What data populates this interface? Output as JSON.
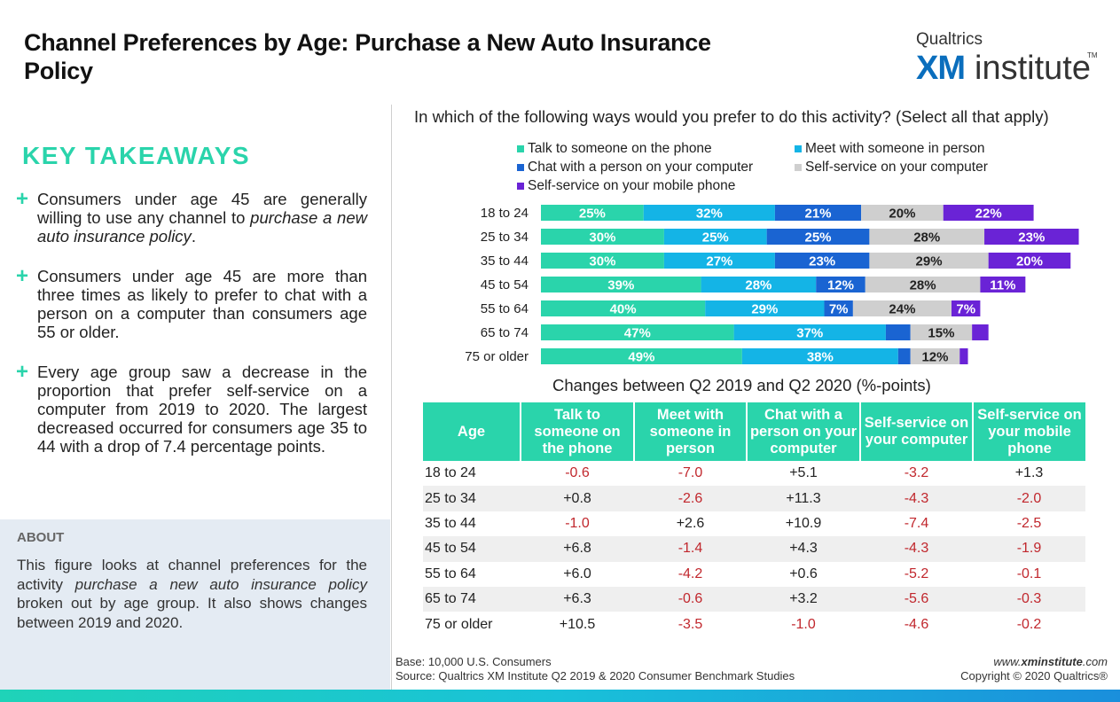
{
  "title": "Channel Preferences by Age: Purchase a New Auto Insurance Policy",
  "logo": {
    "brand": "Qualtrics",
    "xm": "XM",
    "institute": "institute",
    "tm": "TM"
  },
  "key_takeaways": {
    "heading": "KEY TAKEAWAYS",
    "items": [
      {
        "before": "Consumers under age 45 are generally willing to use any channel to ",
        "em": "purchase a new auto insurance policy",
        "after": "."
      },
      {
        "before": "Consumers under age 45 are more than three times as likely to prefer to chat with a person on a computer than consumers age 55 or older.",
        "em": "",
        "after": ""
      },
      {
        "before": "Every age group saw a decrease in the proportion that prefer self-service on a computer from 2019 to 2020. The largest decreased occurred for consumers age 35 to 44 with a drop of 7.4 percentage points.",
        "em": "",
        "after": ""
      }
    ]
  },
  "about": {
    "heading": "ABOUT",
    "before": "This figure looks at channel preferences for the activity ",
    "em": "purchase a new auto insurance policy",
    "after": " broken out by age group. It also shows changes between 2019 and 2020."
  },
  "chart_question": "In which of the following ways would you prefer to do this activity? (Select all that apply)",
  "chart_data": {
    "type": "bar",
    "orientation": "horizontal",
    "stacked": true,
    "categories": [
      "18 to 24",
      "25 to 34",
      "35 to 44",
      "45 to 54",
      "55 to 64",
      "65 to 74",
      "75 or older"
    ],
    "series": [
      {
        "name": "Talk to someone on the phone",
        "color": "#2ad4ab",
        "label_color": "#ffffff",
        "values": [
          25,
          30,
          30,
          39,
          40,
          47,
          49
        ]
      },
      {
        "name": "Meet with someone in person",
        "color": "#14b4e6",
        "label_color": "#ffffff",
        "values": [
          32,
          25,
          27,
          28,
          29,
          37,
          38
        ]
      },
      {
        "name": "Chat with a person on your computer",
        "color": "#1a64d2",
        "label_color": "#ffffff",
        "values": [
          21,
          25,
          23,
          12,
          7,
          6,
          3
        ]
      },
      {
        "name": "Self-service on your computer",
        "color": "#cfcfcf",
        "label_color": "#222222",
        "values": [
          20,
          28,
          29,
          28,
          24,
          15,
          12
        ]
      },
      {
        "name": "Self-service on your mobile phone",
        "color": "#6a23d6",
        "label_color": "#ffffff",
        "values": [
          22,
          23,
          20,
          11,
          7,
          4,
          2
        ]
      }
    ],
    "labels": [
      [
        "25%",
        "32%",
        "21%",
        "20%",
        "22%"
      ],
      [
        "30%",
        "25%",
        "25%",
        "28%",
        "23%"
      ],
      [
        "30%",
        "27%",
        "23%",
        "29%",
        "20%"
      ],
      [
        "39%",
        "28%",
        "12%",
        "28%",
        "11%"
      ],
      [
        "40%",
        "29%",
        "7%",
        "24%",
        "7%"
      ],
      [
        "47%",
        "37%",
        "",
        "15%",
        ""
      ],
      [
        "49%",
        "38%",
        "",
        "12%",
        ""
      ]
    ],
    "legend_position": "top",
    "grid": false
  },
  "changes": {
    "title": "Changes between Q2 2019 and Q2 2020 (%-points)",
    "headers": [
      "Age",
      "Talk to someone on the phone",
      "Meet with someone in person",
      "Chat with a person on your computer",
      "Self-service on your computer",
      "Self-service on your mobile phone"
    ],
    "rows": [
      [
        "18 to 24",
        "-0.6",
        "-7.0",
        "+5.1",
        "-3.2",
        "+1.3"
      ],
      [
        "25 to 34",
        "+0.8",
        "-2.6",
        "+11.3",
        "-4.3",
        "-2.0"
      ],
      [
        "35 to 44",
        "-1.0",
        "+2.6",
        "+10.9",
        "-7.4",
        "-2.5"
      ],
      [
        "45 to 54",
        "+6.8",
        "-1.4",
        "+4.3",
        "-4.3",
        "-1.9"
      ],
      [
        "55 to 64",
        "+6.0",
        "-4.2",
        "+0.6",
        "-5.2",
        "-0.1"
      ],
      [
        "65 to 74",
        "+6.3",
        "-0.6",
        "+3.2",
        "-5.6",
        "-0.3"
      ],
      [
        "75 or older",
        "+10.5",
        "-3.5",
        "-1.0",
        "-4.6",
        "-0.2"
      ]
    ],
    "negative_color": "#c1272d"
  },
  "footer": {
    "base": "Base: 10,000 U.S. Consumers",
    "source": "Source: Qualtrics XM Institute Q2 2019 & 2020 Consumer Benchmark Studies",
    "site_prefix": "www.",
    "site_bold": "xminstitute",
    "site_suffix": ".com",
    "copyright": "Copyright © 2020 Qualtrics®"
  }
}
